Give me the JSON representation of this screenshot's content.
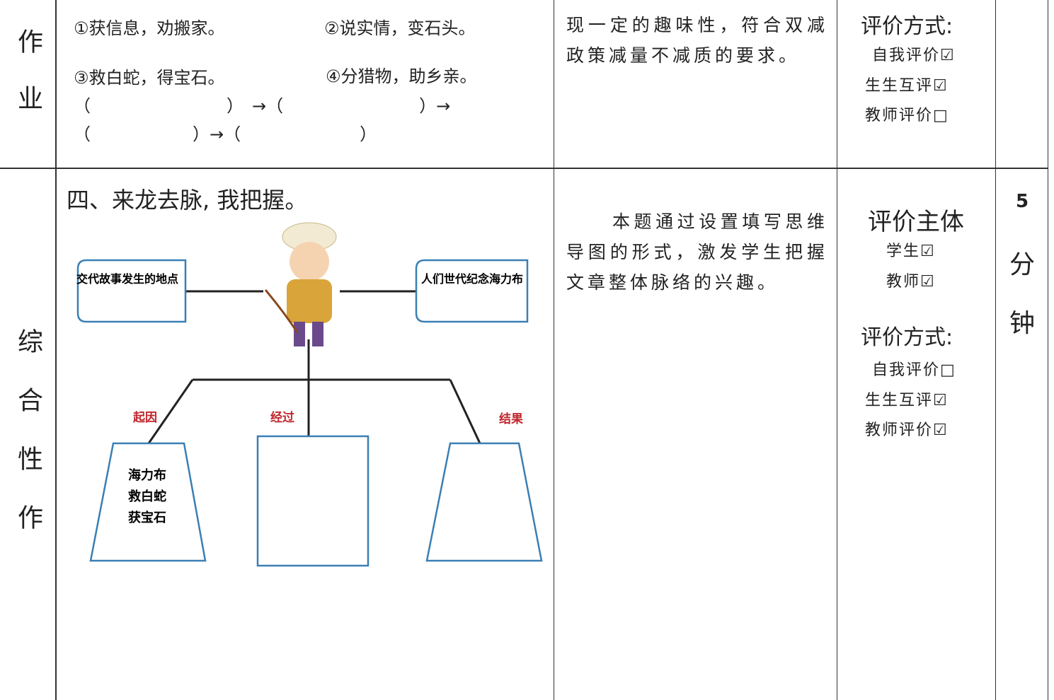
{
  "table": {
    "rows": [
      {
        "label": "作业",
        "content": {
          "items": [
            "①获信息，劝搬家。",
            "②说实情，变石头。",
            "③救白蛇，得宝石。",
            "④分猎物，助乡亲。"
          ],
          "blanks": [
            "（　　　　　　　　）　→（　　　　　　　　）→",
            "（　　　　　　）→（　　　　　　　）"
          ]
        },
        "purpose": "现一定的趣味性，符合双减政策减量不减质的要求。",
        "evaluation": {
          "method_title": "评价方式:",
          "methods": [
            "自我评价☑",
            "生生互评☑",
            "教师评价□"
          ]
        }
      },
      {
        "label": "综合性作业",
        "content": {
          "title": "四、来龙去脉, 我把握。",
          "diagram": {
            "left_box": "交代故事发生的地点",
            "right_box": "人们世代纪念海力布",
            "branches": [
              "起因",
              "经过",
              "结果"
            ],
            "first_box": [
              "海力布",
              "救白蛇",
              "获宝石"
            ]
          }
        },
        "purpose": "本题通过设置填写思维导图的形式，激发学生把握文章整体脉络的兴趣。",
        "evaluation": {
          "subject_title": "评价主体",
          "subjects": [
            "学生☑",
            "教师☑"
          ],
          "method_title": "评价方式:",
          "methods": [
            "自我评价□",
            "生生互评☑",
            "教师评价☑"
          ]
        },
        "time": [
          "5",
          "分",
          "钟"
        ]
      }
    ]
  }
}
